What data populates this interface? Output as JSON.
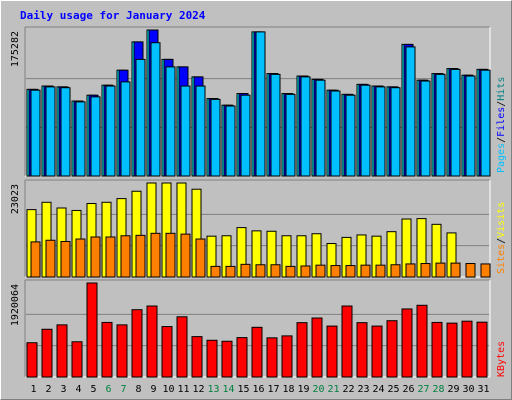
{
  "chart_data": {
    "type": "bar",
    "title": "Daily usage for January 2024",
    "colors": {
      "background": "#c0c0c0",
      "hits": "#00ffff",
      "files": "#0000ff",
      "pages": "#00c0ff",
      "visits": "#ffff00",
      "sites": "#ff8000",
      "kbytes": "#ff0000",
      "title": "#0000ff",
      "weekend": "#008040",
      "weekday": "#000000"
    },
    "days": [
      "1",
      "2",
      "3",
      "4",
      "5",
      "6",
      "7",
      "8",
      "9",
      "10",
      "11",
      "12",
      "13",
      "14",
      "15",
      "16",
      "17",
      "18",
      "19",
      "20",
      "21",
      "22",
      "23",
      "24",
      "25",
      "26",
      "27",
      "28",
      "29",
      "30",
      "31"
    ],
    "weekend_days": [
      "6",
      "7",
      "13",
      "14",
      "20",
      "21",
      "27",
      "28"
    ],
    "top_panel": {
      "max_label": "175282",
      "ylim": [
        0,
        175282
      ],
      "legend": [
        {
          "key": "hits",
          "label": "Hits",
          "color": "#008080"
        },
        {
          "key": "files",
          "label": "Files",
          "color": "#0000ff"
        },
        {
          "key": "pages",
          "label": "Pages",
          "color": "#00c0ff"
        }
      ],
      "separator": "/",
      "series": [
        {
          "key": "hits",
          "values": [
            104000,
            108000,
            107000,
            90000,
            97000,
            109000,
            127000,
            161000,
            175282,
            140000,
            131000,
            119000,
            93000,
            85000,
            99000,
            173000,
            123000,
            99000,
            120000,
            116000,
            103000,
            98000,
            110000,
            108000,
            107000,
            158000,
            115000,
            123000,
            129000,
            121000,
            128000
          ]
        },
        {
          "key": "files",
          "values": [
            104000,
            108000,
            107000,
            90000,
            97000,
            109000,
            127000,
            161000,
            175282,
            140000,
            131000,
            119000,
            93000,
            85000,
            99000,
            173000,
            123000,
            99000,
            120000,
            116000,
            103000,
            98000,
            110000,
            108000,
            107000,
            158000,
            115000,
            123000,
            129000,
            121000,
            128000
          ]
        },
        {
          "key": "pages",
          "values": [
            103000,
            107000,
            106000,
            89000,
            95000,
            108000,
            113000,
            140000,
            160000,
            131000,
            108000,
            108000,
            92000,
            84000,
            97000,
            173000,
            122000,
            98000,
            119000,
            115000,
            102000,
            97000,
            109000,
            107000,
            106000,
            155000,
            114000,
            122000,
            128000,
            120000,
            127000
          ]
        }
      ]
    },
    "mid_panel": {
      "max_label": "23023",
      "ylim": [
        0,
        23023
      ],
      "legend": [
        {
          "key": "visits",
          "label": "Visits",
          "color": "#ffff00"
        },
        {
          "key": "sites",
          "label": "Sites",
          "color": "#ff8000"
        }
      ],
      "separator": "/",
      "series": [
        {
          "key": "visits",
          "values": [
            16500,
            18300,
            16900,
            16300,
            18000,
            18300,
            19200,
            21000,
            23023,
            23023,
            23023,
            21500,
            10000,
            10100,
            12100,
            11300,
            11200,
            10100,
            10100,
            10600,
            8200,
            9700,
            10300,
            10000,
            11100,
            14200,
            14300,
            12900,
            10800,
            null,
            null
          ]
        },
        {
          "key": "sites",
          "values": [
            8600,
            9000,
            8700,
            9300,
            9800,
            9800,
            10100,
            10200,
            10700,
            10700,
            10500,
            9300,
            2600,
            2600,
            3100,
            3000,
            3000,
            2600,
            2700,
            2900,
            2800,
            2800,
            2900,
            2900,
            3000,
            3200,
            3300,
            3400,
            3400,
            3300,
            3200
          ]
        }
      ]
    },
    "bottom_panel": {
      "max_label": "1920064",
      "ylim": [
        0,
        1920064
      ],
      "legend": [
        {
          "key": "kbytes",
          "label": "KBytes",
          "color": "#ff0000"
        }
      ],
      "series": [
        {
          "key": "kbytes",
          "values": [
            700000,
            975000,
            1065000,
            720000,
            1920064,
            1115000,
            1065000,
            1375000,
            1450000,
            1030000,
            1230000,
            825000,
            750000,
            730000,
            805000,
            1015000,
            800000,
            840000,
            1110000,
            1205000,
            1040000,
            1450000,
            1110000,
            1040000,
            1150000,
            1390000,
            1465000,
            1115000,
            1100000,
            1140000,
            1120000
          ]
        }
      ]
    }
  }
}
